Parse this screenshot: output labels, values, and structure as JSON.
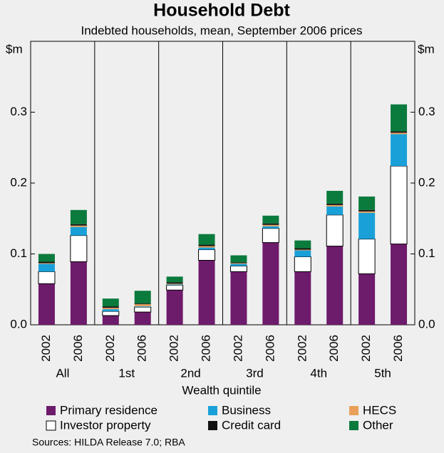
{
  "chart_data": {
    "type": "stacked-bar",
    "title": "Household Debt",
    "subtitle": "Indebted households, mean, September 2006 prices",
    "y_unit": "$m",
    "xlabel": "Wealth quintile",
    "source": "Sources: HILDA Release 7.0; RBA",
    "categories": [
      "2002",
      "2006",
      "2002",
      "2006",
      "2002",
      "2006",
      "2002",
      "2006",
      "2002",
      "2006",
      "2002",
      "2006"
    ],
    "groups": [
      "All",
      "1st",
      "2nd",
      "3rd",
      "4th",
      "5th"
    ],
    "ylim": [
      0,
      0.4
    ],
    "yticks": [
      {
        "value": 0,
        "label": "0.0"
      },
      0.1,
      0.2,
      0.3
    ],
    "series": [
      {
        "name": "Primary residence",
        "color": "#6d1b6b",
        "values": [
          0.058,
          0.089,
          0.013,
          0.018,
          0.049,
          0.091,
          0.075,
          0.116,
          0.075,
          0.111,
          0.072,
          0.114
        ]
      },
      {
        "name": "Investor property",
        "color": "#ffffff",
        "values": [
          0.017,
          0.037,
          0.006,
          0.007,
          0.007,
          0.015,
          0.008,
          0.02,
          0.021,
          0.044,
          0.049,
          0.11
        ]
      },
      {
        "name": "Business",
        "color": "#1aa0d8",
        "values": [
          0.011,
          0.012,
          0.003,
          0.001,
          0.001,
          0.003,
          0.003,
          0.003,
          0.009,
          0.012,
          0.037,
          0.045
        ]
      },
      {
        "name": "HECS",
        "color": "#e8a05a",
        "values": [
          0.001,
          0.002,
          0.002,
          0.003,
          0.001,
          0.002,
          0.001,
          0.002,
          0.001,
          0.002,
          0.002,
          0.002
        ]
      },
      {
        "name": "Credit card",
        "color": "#111111",
        "values": [
          0.002,
          0.002,
          0.002,
          0.001,
          0.002,
          0.002,
          0.001,
          0.002,
          0.002,
          0.002,
          0.002,
          0.002
        ]
      },
      {
        "name": "Other",
        "color": "#0b7a3d",
        "values": [
          0.011,
          0.02,
          0.011,
          0.018,
          0.008,
          0.015,
          0.01,
          0.011,
          0.011,
          0.018,
          0.019,
          0.038
        ]
      }
    ]
  }
}
